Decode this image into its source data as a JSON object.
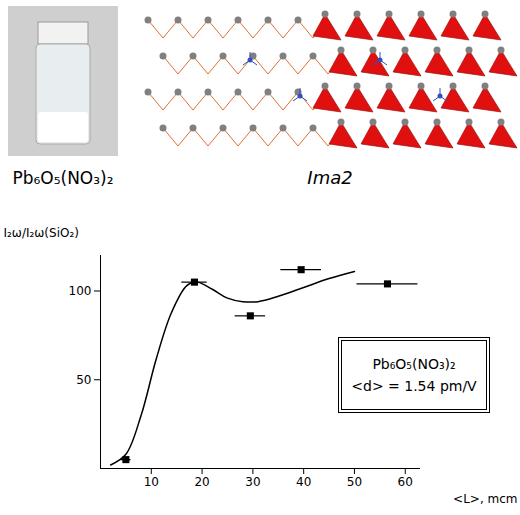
{
  "chart_data": {
    "type": "scatter",
    "annotations": [
      "Pb₆O₅(NO₃)₂",
      "Ima2",
      "Pb₆O₅(NO₃)₂",
      "<d> = 1.54 pm/V"
    ],
    "x_label": "<L>, mcm",
    "y_label": "I₂ω/I₂ω(SiO₂)",
    "xlim": [
      0,
      63
    ],
    "xticks": [
      10,
      20,
      30,
      40,
      50,
      60
    ],
    "ylim": [
      0,
      120
    ],
    "yticks": [
      50,
      100
    ],
    "grid": false,
    "series": [
      {
        "type": "scatter",
        "marker": "square",
        "color": "#000000",
        "x": [
          5,
          18.5,
          29.5,
          39.5,
          56.5
        ],
        "values": [
          5,
          105,
          86,
          112,
          104
        ],
        "x_error": [
          1,
          2.5,
          3,
          4,
          6
        ]
      },
      {
        "type": "line",
        "line_style": "solid",
        "color": "#000000",
        "x": [
          2,
          5,
          8,
          11,
          14,
          17,
          19,
          22,
          25,
          28,
          31,
          35,
          40,
          45,
          50
        ],
        "values": [
          2,
          8,
          30,
          62,
          88,
          103,
          105,
          101,
          96,
          94,
          94,
          97,
          102,
          107,
          111
        ]
      }
    ]
  }
}
